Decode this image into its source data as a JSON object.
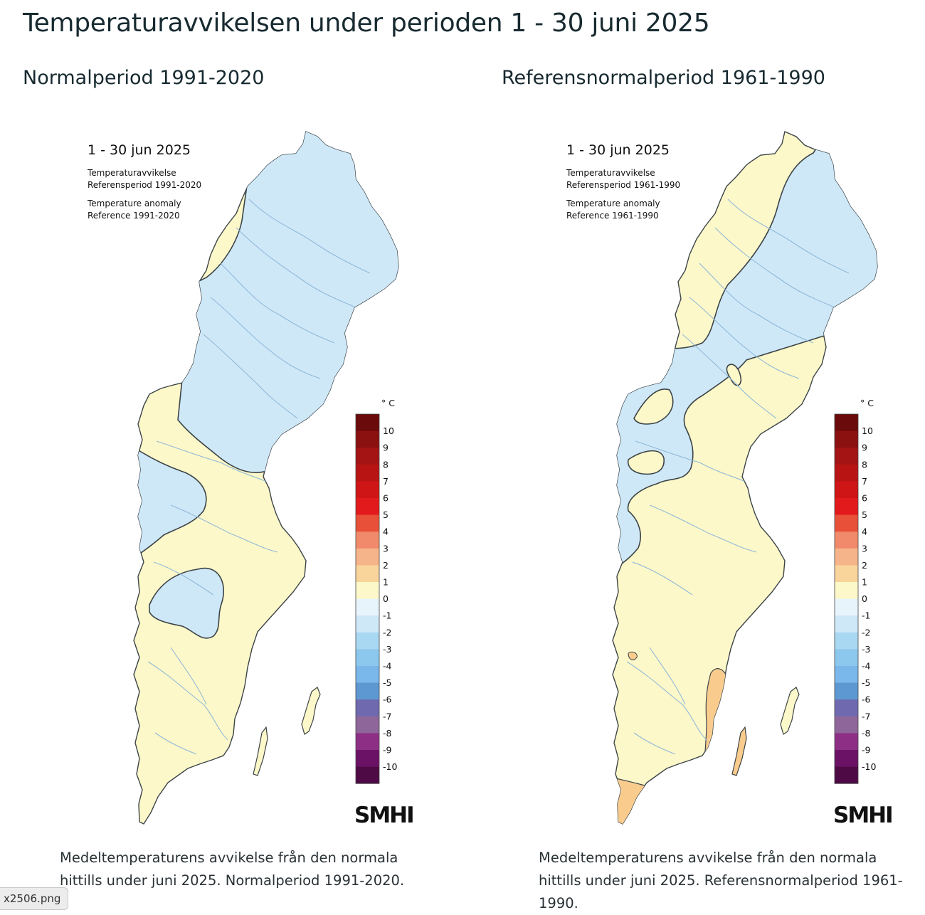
{
  "page": {
    "title": "Temperaturavvikelsen under perioden 1 - 30 juni 2025"
  },
  "colors": {
    "land_anomaly_0_1": "#fdf8c9",
    "land_anomaly_1_2": "#f9cc8e",
    "land_anomaly_minus1_0": "#cfe8f8",
    "border": "#3c4448",
    "rivers": "#8fb9d8"
  },
  "legend": {
    "unit": "° C",
    "ticks": [
      "10",
      "9",
      "8",
      "7",
      "6",
      "5",
      "4",
      "3",
      "2",
      "1",
      "0",
      "-1",
      "-2",
      "-3",
      "-4",
      "-5",
      "-6",
      "-7",
      "-8",
      "-9",
      "-10"
    ],
    "colors": [
      "#6b0a0a",
      "#8b1010",
      "#a41414",
      "#b91414",
      "#cf1515",
      "#e31a1c",
      "#e8503a",
      "#f08a6a",
      "#f6b48a",
      "#f9d49b",
      "#fdf8c9",
      "#e8f4fb",
      "#cfe8f8",
      "#a9d8f2",
      "#8cc8ee",
      "#7ab7ea",
      "#5e98d2",
      "#6f6ab0",
      "#8f6699",
      "#8e2f86",
      "#6b1266",
      "#4e0a44"
    ]
  },
  "maps": [
    {
      "panel_title": "Normalperiod 1991-2020",
      "date_label": "1 - 30 jun 2025",
      "subtitle_sv_1": "Temperaturavvikelse",
      "subtitle_sv_2": "Referensperiod 1991-2020",
      "subtitle_en_1": "Temperature anomaly",
      "subtitle_en_2": "Reference 1991-2020",
      "logo": "SMHI",
      "caption": "Medeltemperaturens avvikelse från den normala hittills under juni 2025. Normalperiod 1991-2020."
    },
    {
      "panel_title": "Referensnormalperiod 1961-1990",
      "date_label": "1 - 30 jun 2025",
      "subtitle_sv_1": "Temperaturavvikelse",
      "subtitle_sv_2": "Referensperiod 1961-1990",
      "subtitle_en_1": "Temperature anomaly",
      "subtitle_en_2": "Reference 1961-1990",
      "logo": "SMHI",
      "caption": "Medeltemperaturens avvikelse från den normala hittills under juni 2025. Referensnormalperiod 1961-1990."
    }
  ],
  "file_chip": "x2506.png"
}
